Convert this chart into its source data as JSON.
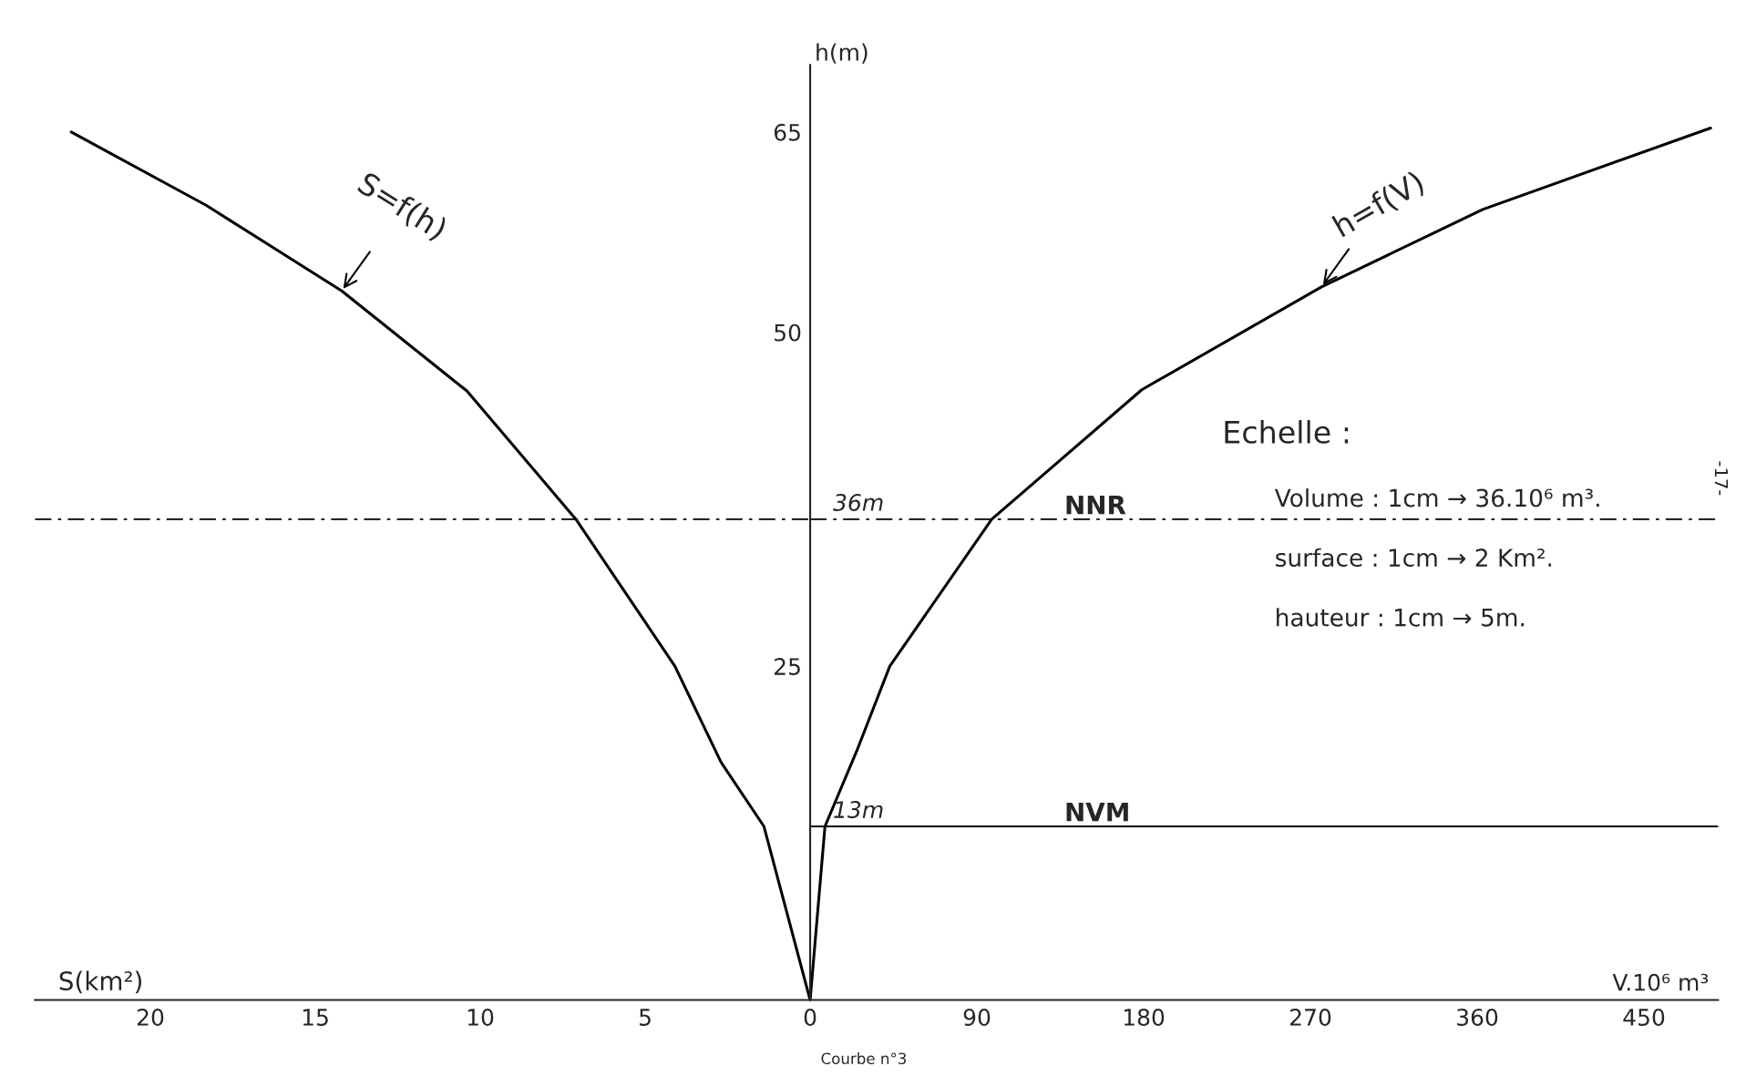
{
  "chart_data": [
    {
      "type": "line",
      "xlabel": "S(km²)",
      "xlim": [
        23.5,
        0
      ],
      "xticks": [
        20,
        15,
        10,
        5
      ],
      "ylim": [
        0,
        70
      ],
      "yticks": [
        25,
        50,
        65
      ],
      "tick_labels": "x",
      "grid": false,
      "series": [
        {
          "name": "S=f(h)",
          "color": "#000000",
          "x": [
            0,
            1.4,
            2.7,
            4.1,
            7.1,
            10.4,
            14.2,
            18.3,
            22.4
          ],
          "values": [
            0,
            13,
            17.8,
            25,
            36,
            45.6,
            53.1,
            59.5,
            65
          ]
        }
      ],
      "ref_lines": [
        {
          "axis": "y",
          "value": 36,
          "line_style": "dashed",
          "color": "#000000"
        }
      ]
    },
    {
      "type": "line",
      "xlabel": "V.10⁶ m³",
      "ylabel": "h(m)",
      "xlim": [
        0,
        490
      ],
      "xticks": [
        0,
        90,
        180,
        270,
        360,
        450
      ],
      "ylim": [
        0,
        70
      ],
      "yticks": [
        25,
        50,
        65
      ],
      "grid": false,
      "series": [
        {
          "name": "h=f(V)",
          "color": "#000000",
          "x": [
            0,
            8,
            25,
            43,
            98,
            179,
            276,
            363,
            486
          ],
          "values": [
            0,
            13,
            18.6,
            25,
            36,
            45.7,
            53.4,
            59.2,
            65.3
          ]
        }
      ],
      "ref_lines": [
        {
          "axis": "y",
          "value": 36,
          "label": "NNR",
          "line_style": "dashed",
          "color": "#000000"
        },
        {
          "axis": "y",
          "value": 13,
          "label": "NVM",
          "line_style": "solid",
          "color": "#000000"
        }
      ],
      "annotations": [
        {
          "text": "36m",
          "x": 0,
          "y": 36
        },
        {
          "text": "13m",
          "x": 0,
          "y": 13
        },
        "Courbe n°3",
        "Echelle :",
        "Volume : 1cm → 36.10⁶ m³.",
        "surface : 1cm → 2 Km².",
        "hauteur : 1cm → 5m.",
        "-17-"
      ]
    }
  ]
}
